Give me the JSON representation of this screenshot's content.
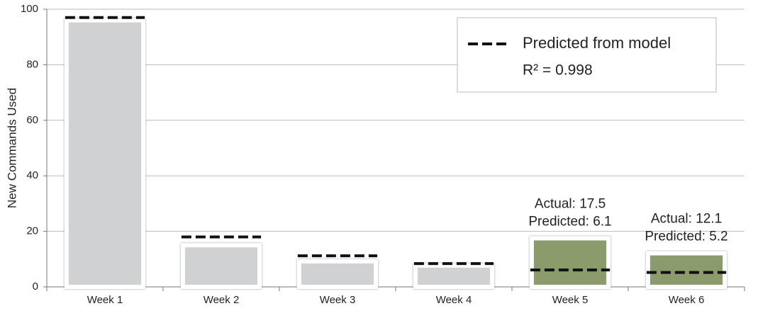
{
  "chart_data": {
    "type": "bar",
    "y_label": "New Commands Used",
    "categories": [
      "Week 1",
      "Week 2",
      "Week 3",
      "Week 4",
      "Week 5",
      "Week 6"
    ],
    "series": [
      {
        "values": [
          96,
          15,
          9.2,
          7.7,
          17.5,
          12.1
        ],
        "colors": [
          "#d0d1d3",
          "#d0d1d3",
          "#d0d1d3",
          "#d0d1d3",
          "#8b9b6c",
          "#8b9b6c"
        ],
        "value_labels": [
          null,
          null,
          null,
          null,
          "Actual: 17.5",
          "Actual: 12.1"
        ]
      },
      {
        "name": "Predicted from model",
        "color": "#111",
        "style": "dashed",
        "values": [
          97,
          18,
          11.2,
          8.4,
          6.1,
          5.2
        ],
        "value_labels": [
          null,
          null,
          null,
          null,
          "Predicted: 6.1",
          "Predicted: 5.2"
        ]
      }
    ],
    "legend_note": "R² = 0.998",
    "legend_position": "upper right",
    "ylim": [
      0,
      100
    ],
    "yticks": [
      0,
      20,
      40,
      60,
      80,
      100
    ],
    "grid": true
  }
}
